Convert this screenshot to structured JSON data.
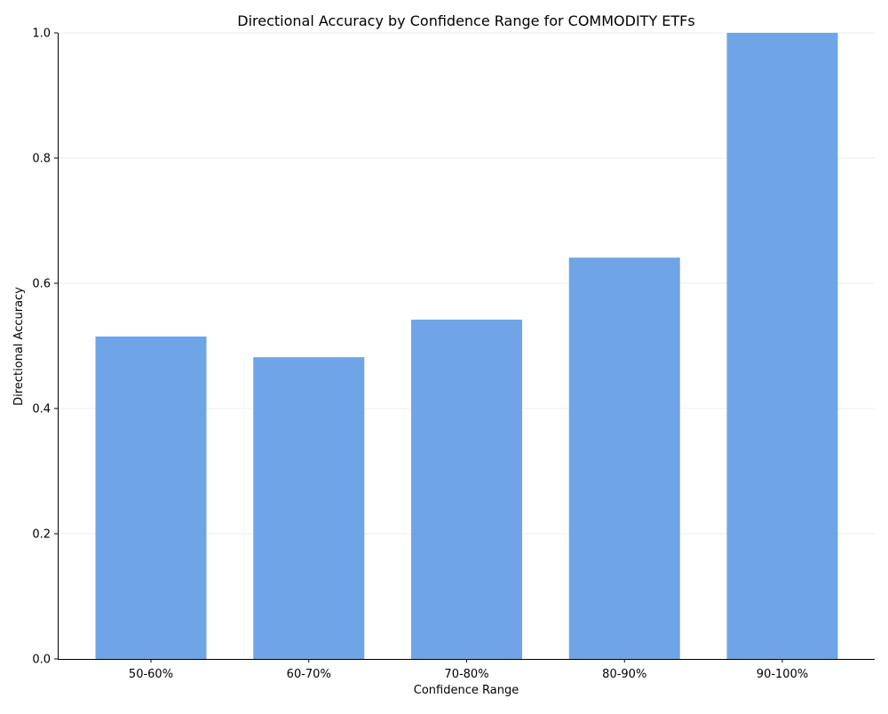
{
  "chart_data": {
    "type": "bar",
    "title": "Directional Accuracy by Confidence Range for COMMODITY ETFs",
    "xlabel": "Confidence Range",
    "ylabel": "Directional Accuracy",
    "categories": [
      "50-60%",
      "60-70%",
      "70-80%",
      "80-90%",
      "90-100%"
    ],
    "values": [
      0.515,
      0.482,
      0.542,
      0.641,
      1.0
    ],
    "ylim": [
      0,
      1.0
    ],
    "yticks": [
      "0.0",
      "0.2",
      "0.4",
      "0.6",
      "0.8",
      "1.0"
    ],
    "grid": "horizontal",
    "legend": "none",
    "bar_color": "#6fa5e6"
  }
}
